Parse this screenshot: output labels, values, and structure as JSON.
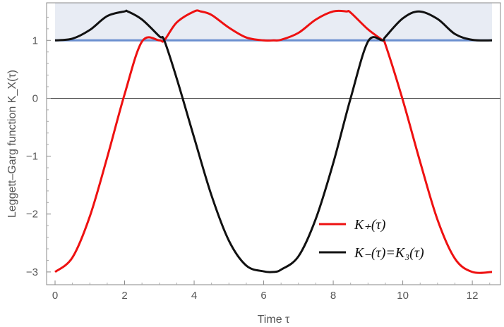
{
  "chart_data": {
    "type": "line",
    "xlabel": "Time τ",
    "ylabel": "Leggett–Garg function K_X(τ)",
    "xlim": [
      0,
      12.566
    ],
    "ylim": [
      -3.05,
      1.6
    ],
    "x_ticks": [
      0,
      2,
      4,
      6,
      8,
      10,
      12
    ],
    "y_ticks": [
      -3,
      -2,
      -1,
      0,
      1
    ],
    "x_tick_labels": [
      "0",
      "2",
      "4",
      "6",
      "8",
      "10",
      "12"
    ],
    "y_tick_labels": [
      "−3",
      "−2",
      "−1",
      "0",
      "1"
    ],
    "shaded_band": {
      "y_from": 1,
      "y_to": 1.6,
      "color": "#e8ecf4"
    },
    "reference_line": {
      "y": 1,
      "color": "#6b8fcf"
    },
    "zero_line": {
      "y": 0,
      "color": "#444444"
    },
    "grid": false,
    "legend_position": "bottom-right",
    "series": [
      {
        "name": "K₊(τ)",
        "color": "#ee1111",
        "x": [
          0,
          0.5,
          1.0,
          1.5,
          2.0,
          2.5,
          3.0,
          3.14,
          3.5,
          4.0,
          4.19,
          4.5,
          5.0,
          5.5,
          6.0,
          6.28,
          6.5,
          7.0,
          7.5,
          8.0,
          8.38,
          8.5,
          9.0,
          9.42,
          9.5,
          10.0,
          10.5,
          11.0,
          11.5,
          12.0,
          12.566
        ],
        "values": [
          -3.0,
          -2.75,
          -2.04,
          -1.02,
          0.07,
          0.98,
          1.0,
          1.0,
          1.31,
          1.5,
          1.5,
          1.44,
          1.22,
          1.05,
          1.0,
          1.0,
          1.01,
          1.13,
          1.36,
          1.5,
          1.5,
          1.48,
          1.19,
          1.0,
          0.93,
          -0.03,
          -1.1,
          -2.1,
          -2.77,
          -3.0,
          -3.0
        ]
      },
      {
        "name": "K₋(τ)=K₃(τ)",
        "color": "#111111",
        "x": [
          0,
          0.5,
          1.0,
          1.5,
          2.0,
          2.09,
          2.5,
          3.0,
          3.14,
          3.5,
          4.0,
          4.5,
          5.0,
          5.5,
          6.0,
          6.28,
          6.5,
          7.0,
          7.5,
          8.0,
          8.5,
          9.0,
          9.42,
          9.5,
          10.0,
          10.47,
          11.0,
          11.5,
          12.0,
          12.566
        ],
        "values": [
          1.0,
          1.03,
          1.18,
          1.42,
          1.5,
          1.5,
          1.36,
          1.07,
          1.0,
          0.34,
          -0.68,
          -1.68,
          -2.46,
          -2.89,
          -2.99,
          -3.0,
          -2.96,
          -2.73,
          -2.08,
          -1.12,
          0.0,
          0.98,
          1.0,
          1.06,
          1.38,
          1.5,
          1.37,
          1.11,
          1.01,
          1.0
        ]
      }
    ]
  }
}
